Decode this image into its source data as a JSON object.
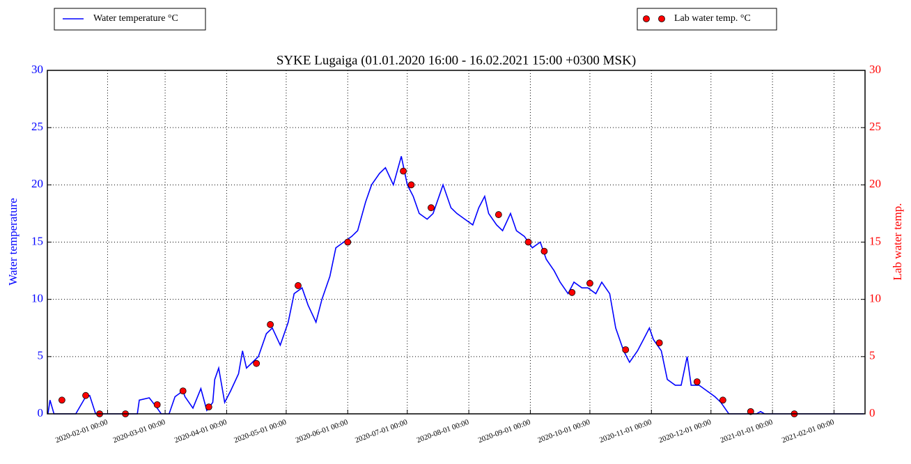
{
  "chart_data": {
    "type": "line",
    "title": "SYKE Lugaiga (01.01.2020 16:00 - 16.02.2021 15:00 +0300 MSK)",
    "ylabel": "Water temperature",
    "y2label": "Lab water temp.",
    "xlim": [
      "2020-01-01 16:00",
      "2021-02-16 15:00"
    ],
    "xticks": [
      "2020-02-01 00:00",
      "2020-03-01 00:00",
      "2020-04-01 00:00",
      "2020-05-01 00:00",
      "2020-06-01 00:00",
      "2020-07-01 00:00",
      "2020-08-01 00:00",
      "2020-09-01 00:00",
      "2020-10-01 00:00",
      "2020-11-01 00:00",
      "2020-12-01 00:00",
      "2021-01-01 00:00",
      "2021-02-01 00:00"
    ],
    "ylim": [
      0,
      30
    ],
    "yticks": [
      0,
      5,
      10,
      15,
      20,
      25,
      30
    ],
    "y2lim": [
      0,
      30
    ],
    "y2ticks": [
      0,
      5,
      10,
      15,
      20,
      25,
      30
    ],
    "grid": true,
    "series": [
      {
        "name": "Water temperature °C",
        "color": "#0000ff",
        "axis": "y",
        "x": [
          "2020-01-02 00:00",
          "2020-01-03 00:00",
          "2020-01-05 00:00",
          "2020-01-16 00:00",
          "2020-01-21 00:00",
          "2020-01-23 00:00",
          "2020-01-26 00:00",
          "2020-02-16 00:00",
          "2020-02-17 00:00",
          "2020-02-22 00:00",
          "2020-02-26 00:00",
          "2020-02-28 00:00",
          "2020-03-03 00:00",
          "2020-03-06 00:00",
          "2020-03-10 00:00",
          "2020-03-11 00:00",
          "2020-03-15 00:00",
          "2020-03-19 00:00",
          "2020-03-22 00:00",
          "2020-03-25 00:00",
          "2020-03-26 00:00",
          "2020-03-28 00:00",
          "2020-03-31 00:00",
          "2020-04-03 00:00",
          "2020-04-07 00:00",
          "2020-04-09 00:00",
          "2020-04-11 00:00",
          "2020-04-14 00:00",
          "2020-04-17 00:00",
          "2020-04-21 00:00",
          "2020-04-24 00:00",
          "2020-04-28 00:00",
          "2020-05-02 00:00",
          "2020-05-05 00:00",
          "2020-05-09 00:00",
          "2020-05-12 00:00",
          "2020-05-16 00:00",
          "2020-05-19 00:00",
          "2020-05-23 00:00",
          "2020-05-26 00:00",
          "2020-05-30 00:00",
          "2020-06-03 00:00",
          "2020-06-06 00:00",
          "2020-06-10 00:00",
          "2020-06-13 00:00",
          "2020-06-17 00:00",
          "2020-06-20 00:00",
          "2020-06-24 00:00",
          "2020-06-28 00:00",
          "2020-07-01 00:00",
          "2020-07-04 00:00",
          "2020-07-07 00:00",
          "2020-07-11 00:00",
          "2020-07-14 00:00",
          "2020-07-17 00:00",
          "2020-07-19 00:00",
          "2020-07-23 00:00",
          "2020-07-26 00:00",
          "2020-07-30 00:00",
          "2020-08-03 00:00",
          "2020-08-06 00:00",
          "2020-08-09 00:00",
          "2020-08-11 00:00",
          "2020-08-15 00:00",
          "2020-08-18 00:00",
          "2020-08-22 00:00",
          "2020-08-25 00:00",
          "2020-08-29 00:00",
          "2020-09-02 00:00",
          "2020-09-06 00:00",
          "2020-09-09 00:00",
          "2020-09-13 00:00",
          "2020-09-16 00:00",
          "2020-09-20 00:00",
          "2020-09-23 00:00",
          "2020-09-27 00:00",
          "2020-09-30 00:00",
          "2020-10-04 00:00",
          "2020-10-07 00:00",
          "2020-10-11 00:00",
          "2020-10-14 00:00",
          "2020-10-18 00:00",
          "2020-10-21 00:00",
          "2020-10-25 00:00",
          "2020-10-28 00:00",
          "2020-10-31 00:00",
          "2020-11-02 00:00",
          "2020-11-06 00:00",
          "2020-11-09 00:00",
          "2020-11-13 00:00",
          "2020-11-16 00:00",
          "2020-11-19 00:00",
          "2020-11-21 00:00",
          "2020-11-25 00:00",
          "2020-11-29 00:00",
          "2020-12-03 00:00",
          "2020-12-06 00:00",
          "2020-12-10 00:00",
          "2020-12-24 00:00",
          "2020-12-26 00:00",
          "2020-12-28 00:00",
          "2021-02-16 00:00"
        ],
        "values": [
          0,
          1.2,
          0,
          0,
          1.5,
          1.6,
          0,
          0,
          1.2,
          1.4,
          0.5,
          0,
          0,
          1.5,
          2.0,
          1.5,
          0.5,
          2.2,
          0.3,
          1.0,
          3.0,
          4.0,
          1.0,
          2.0,
          3.5,
          5.5,
          4.0,
          4.5,
          5.0,
          7.0,
          7.5,
          6.0,
          8.0,
          10.5,
          11.0,
          9.5,
          8.0,
          10.0,
          12.0,
          14.5,
          15.0,
          15.5,
          16.0,
          18.5,
          20.0,
          21.0,
          21.5,
          20.0,
          22.5,
          20.0,
          19.0,
          17.5,
          17.0,
          17.5,
          19.0,
          20.0,
          18.0,
          17.5,
          17.0,
          16.5,
          18.0,
          19.0,
          17.5,
          16.5,
          16.0,
          17.5,
          16.0,
          15.5,
          14.5,
          15.0,
          13.5,
          12.5,
          11.5,
          10.5,
          11.5,
          11.0,
          11.0,
          10.5,
          11.5,
          10.5,
          7.5,
          5.5,
          4.5,
          5.5,
          6.5,
          7.5,
          6.5,
          5.5,
          3.0,
          2.5,
          2.5,
          5.0,
          2.5,
          2.5,
          2.0,
          1.5,
          1.0,
          0,
          0,
          0.2,
          0,
          0
        ]
      },
      {
        "name": "Lab water temp. °C",
        "color": "#ff0000",
        "axis": "y2",
        "x": [
          "2020-01-09 00:00",
          "2020-01-21 00:00",
          "2020-01-28 00:00",
          "2020-02-10 00:00",
          "2020-02-26 00:00",
          "2020-03-10 00:00",
          "2020-03-23 00:00",
          "2020-04-16 00:00",
          "2020-04-23 00:00",
          "2020-05-07 00:00",
          "2020-06-01 00:00",
          "2020-06-29 00:00",
          "2020-07-03 00:00",
          "2020-07-13 00:00",
          "2020-08-16 00:00",
          "2020-08-31 00:00",
          "2020-09-08 00:00",
          "2020-09-22 00:00",
          "2020-10-01 00:00",
          "2020-10-19 00:00",
          "2020-11-05 00:00",
          "2020-11-24 00:00",
          "2020-12-07 00:00",
          "2020-12-21 00:00",
          "2021-01-12 00:00"
        ],
        "values": [
          1.2,
          1.6,
          0,
          0,
          0.8,
          2.0,
          0.6,
          4.4,
          7.8,
          11.2,
          15.0,
          21.2,
          20.0,
          18.0,
          17.4,
          15.0,
          14.2,
          10.6,
          11.4,
          5.6,
          6.2,
          2.8,
          1.2,
          0.2,
          0
        ]
      }
    ]
  }
}
